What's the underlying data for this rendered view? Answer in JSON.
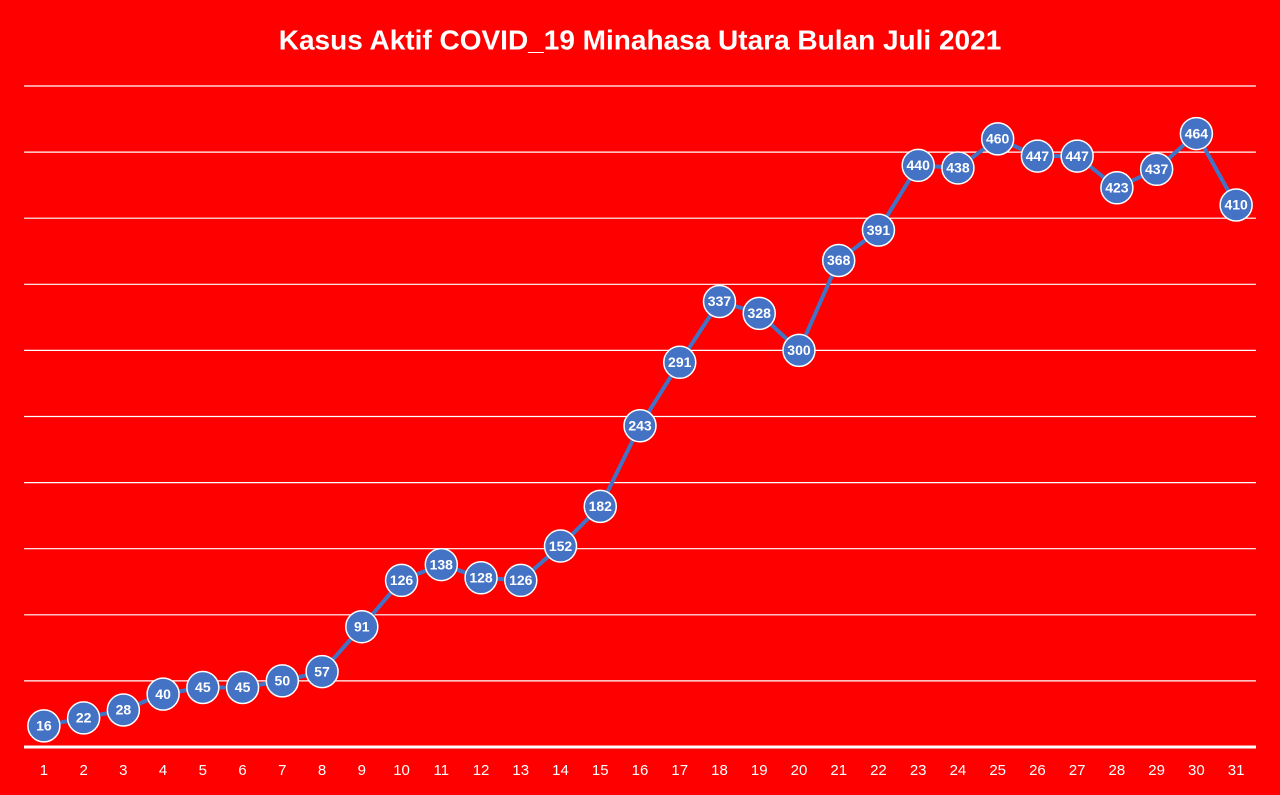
{
  "chart_data": {
    "type": "line",
    "title": "Kasus Aktif COVID_19 Minahasa Utara Bulan Juli 2021",
    "categories": [
      "1",
      "2",
      "3",
      "4",
      "5",
      "6",
      "7",
      "8",
      "9",
      "10",
      "11",
      "12",
      "13",
      "14",
      "15",
      "16",
      "17",
      "18",
      "19",
      "20",
      "21",
      "22",
      "23",
      "24",
      "25",
      "26",
      "27",
      "28",
      "29",
      "30",
      "31"
    ],
    "series": [
      {
        "color": "#4472c4",
        "values": [
          16,
          22,
          28,
          40,
          45,
          45,
          50,
          57,
          91,
          126,
          138,
          128,
          126,
          152,
          182,
          243,
          291,
          337,
          328,
          300,
          368,
          391,
          440,
          438,
          460,
          447,
          447,
          423,
          437,
          464,
          410
        ]
      }
    ],
    "ylim": [
      0,
      500
    ],
    "yticks": [
      0,
      50,
      100,
      150,
      200,
      250,
      300,
      350,
      400,
      450,
      500
    ],
    "grid": true
  }
}
